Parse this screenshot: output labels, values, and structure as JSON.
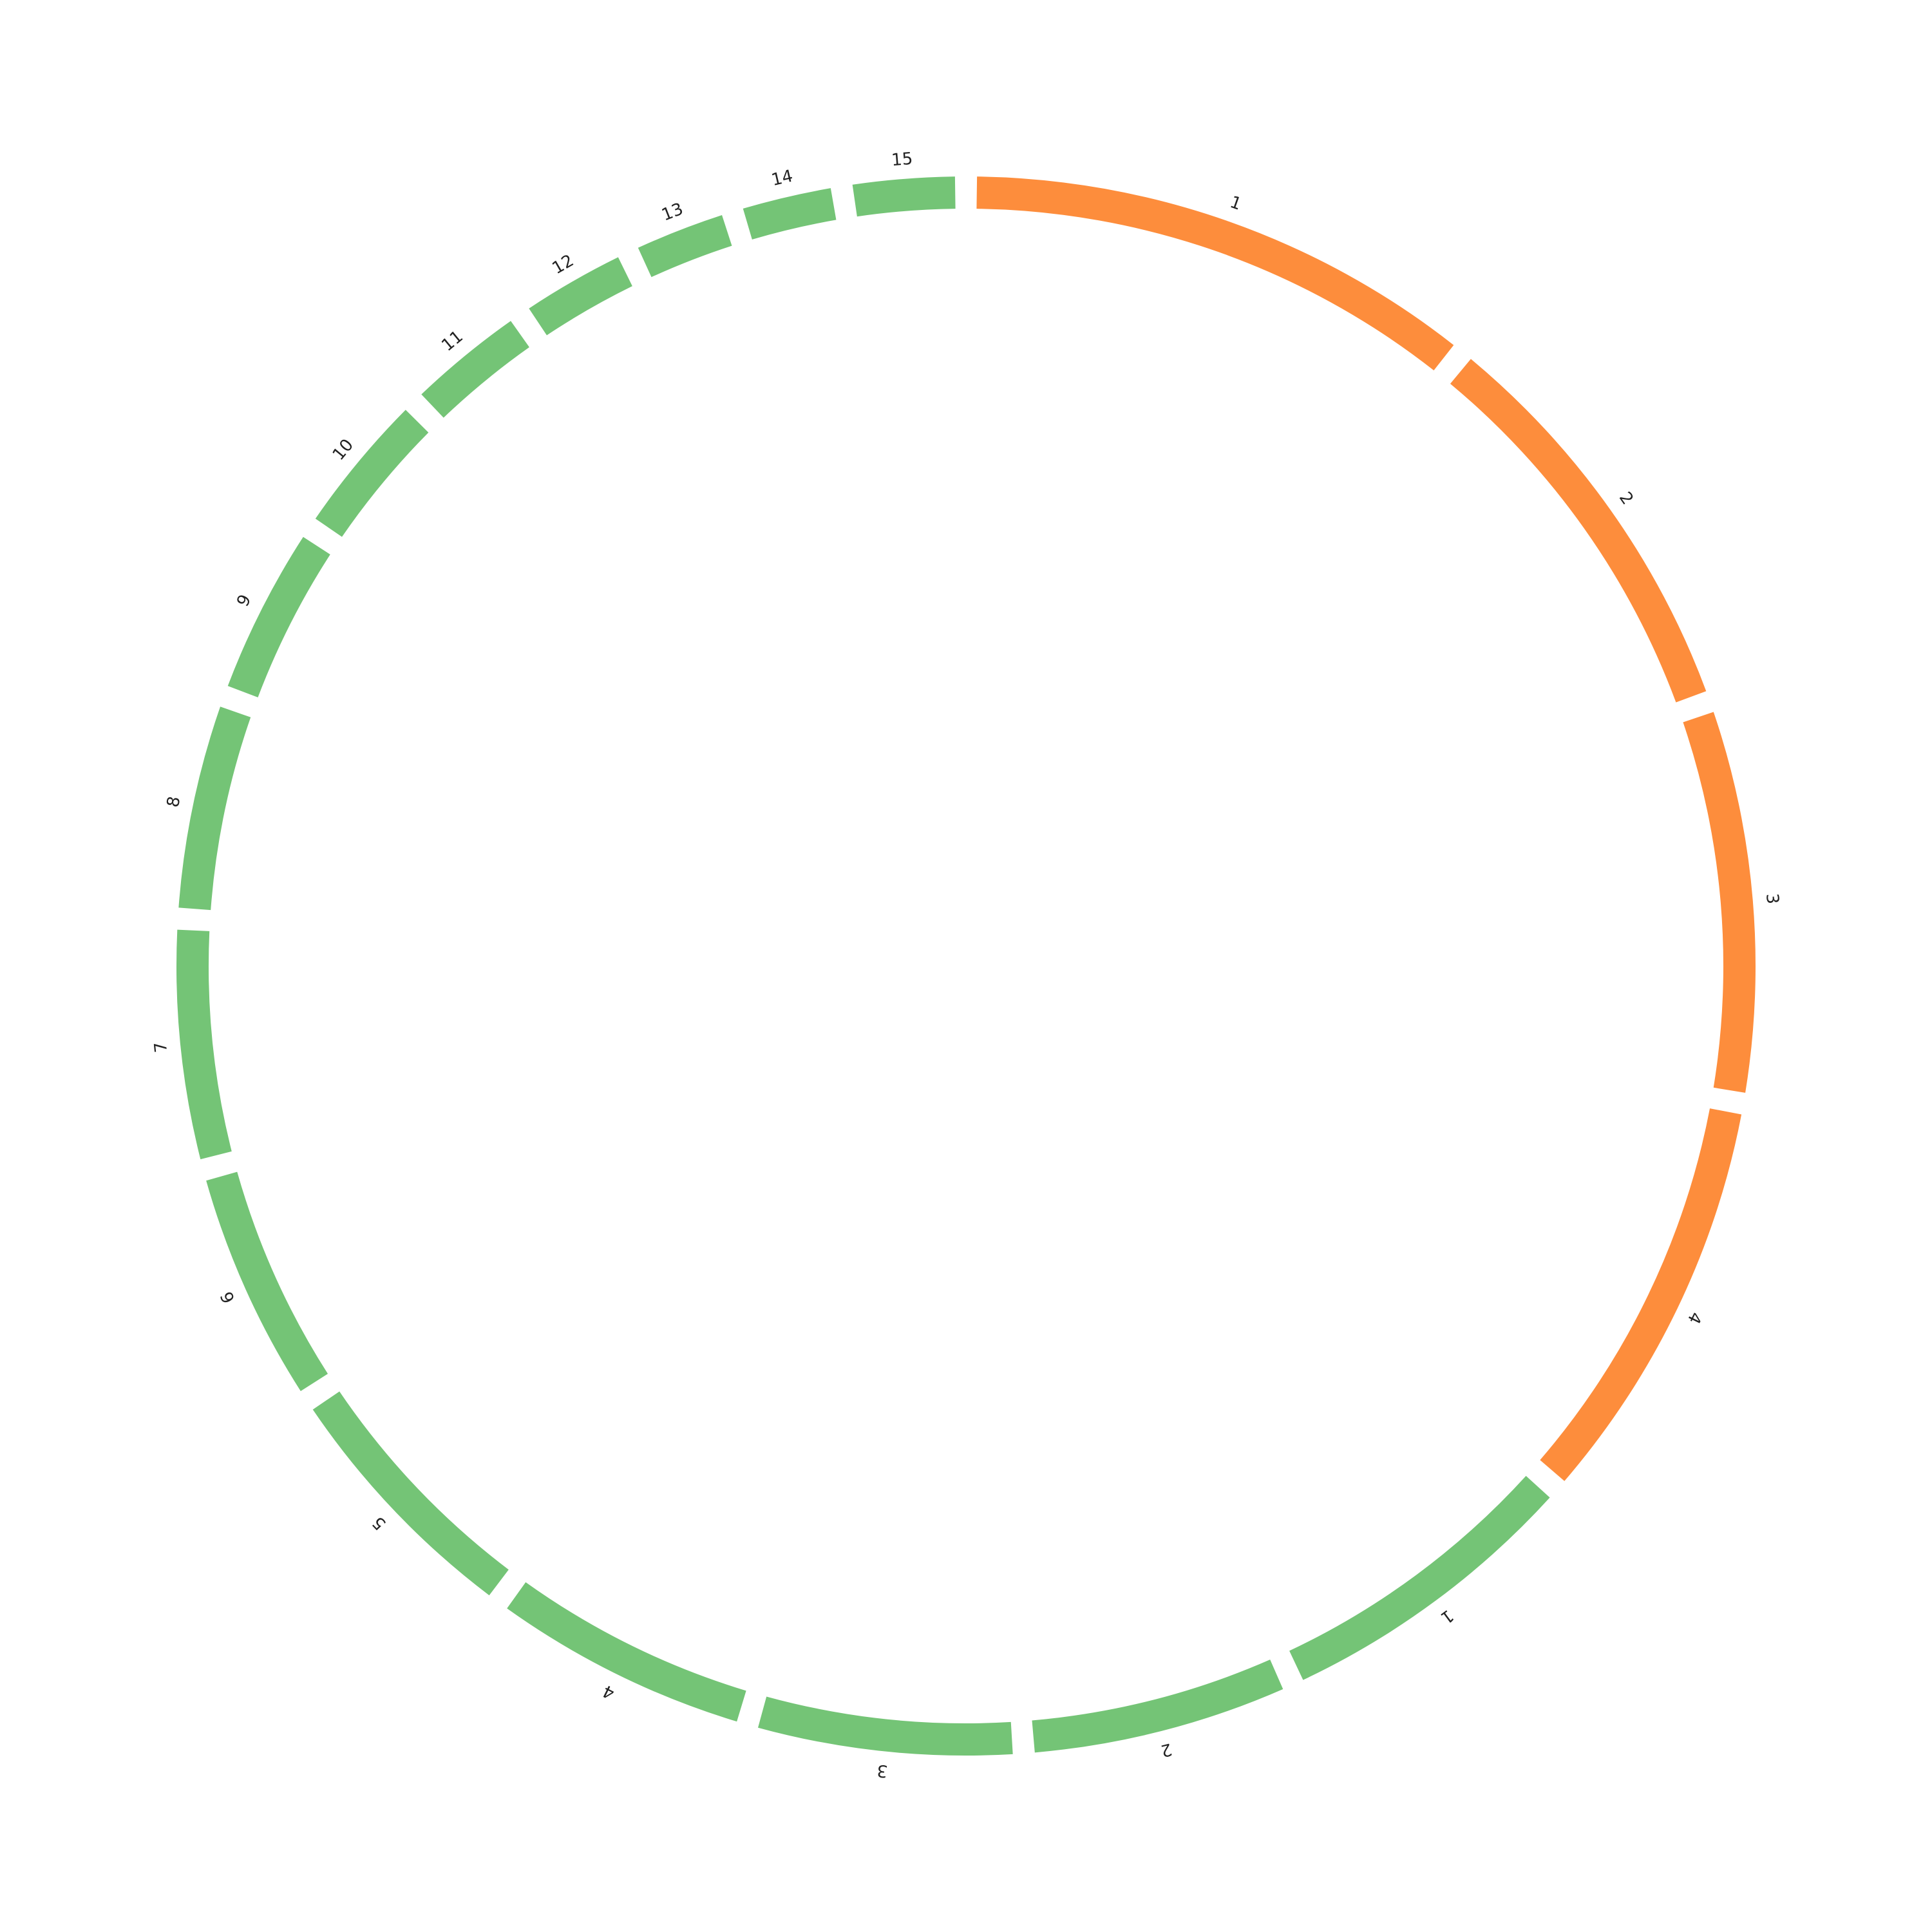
{
  "colors": {
    "orange": "#fd8d3c",
    "green": "#74c476"
  },
  "chart_data": {
    "type": "circos",
    "total": 24,
    "groups": [
      {
        "color": "#fd8d3c",
        "segments": [
          {
            "label": "1",
            "size": 2.0
          },
          {
            "label": "2",
            "size": 1.6
          },
          {
            "label": "3",
            "size": 1.5
          },
          {
            "label": "4",
            "size": 1.6
          }
        ]
      },
      {
        "color": "#74c476",
        "segments": [
          {
            "label": "1",
            "size": 1.2
          },
          {
            "label": "2",
            "size": 1.0
          },
          {
            "label": "3",
            "size": 1.0
          },
          {
            "label": "4",
            "size": 1.0
          },
          {
            "label": "5",
            "size": 1.0
          },
          {
            "label": "6",
            "size": 0.9
          },
          {
            "label": "7",
            "size": 0.9
          },
          {
            "label": "8",
            "size": 0.8
          },
          {
            "label": "9",
            "size": 0.65
          },
          {
            "label": "10",
            "size": 0.55
          },
          {
            "label": "11",
            "size": 0.45
          },
          {
            "label": "12",
            "size": 0.4
          },
          {
            "label": "13",
            "size": 0.35
          },
          {
            "label": "14",
            "size": 0.35
          },
          {
            "label": "15",
            "size": 0.4
          }
        ]
      }
    ]
  }
}
